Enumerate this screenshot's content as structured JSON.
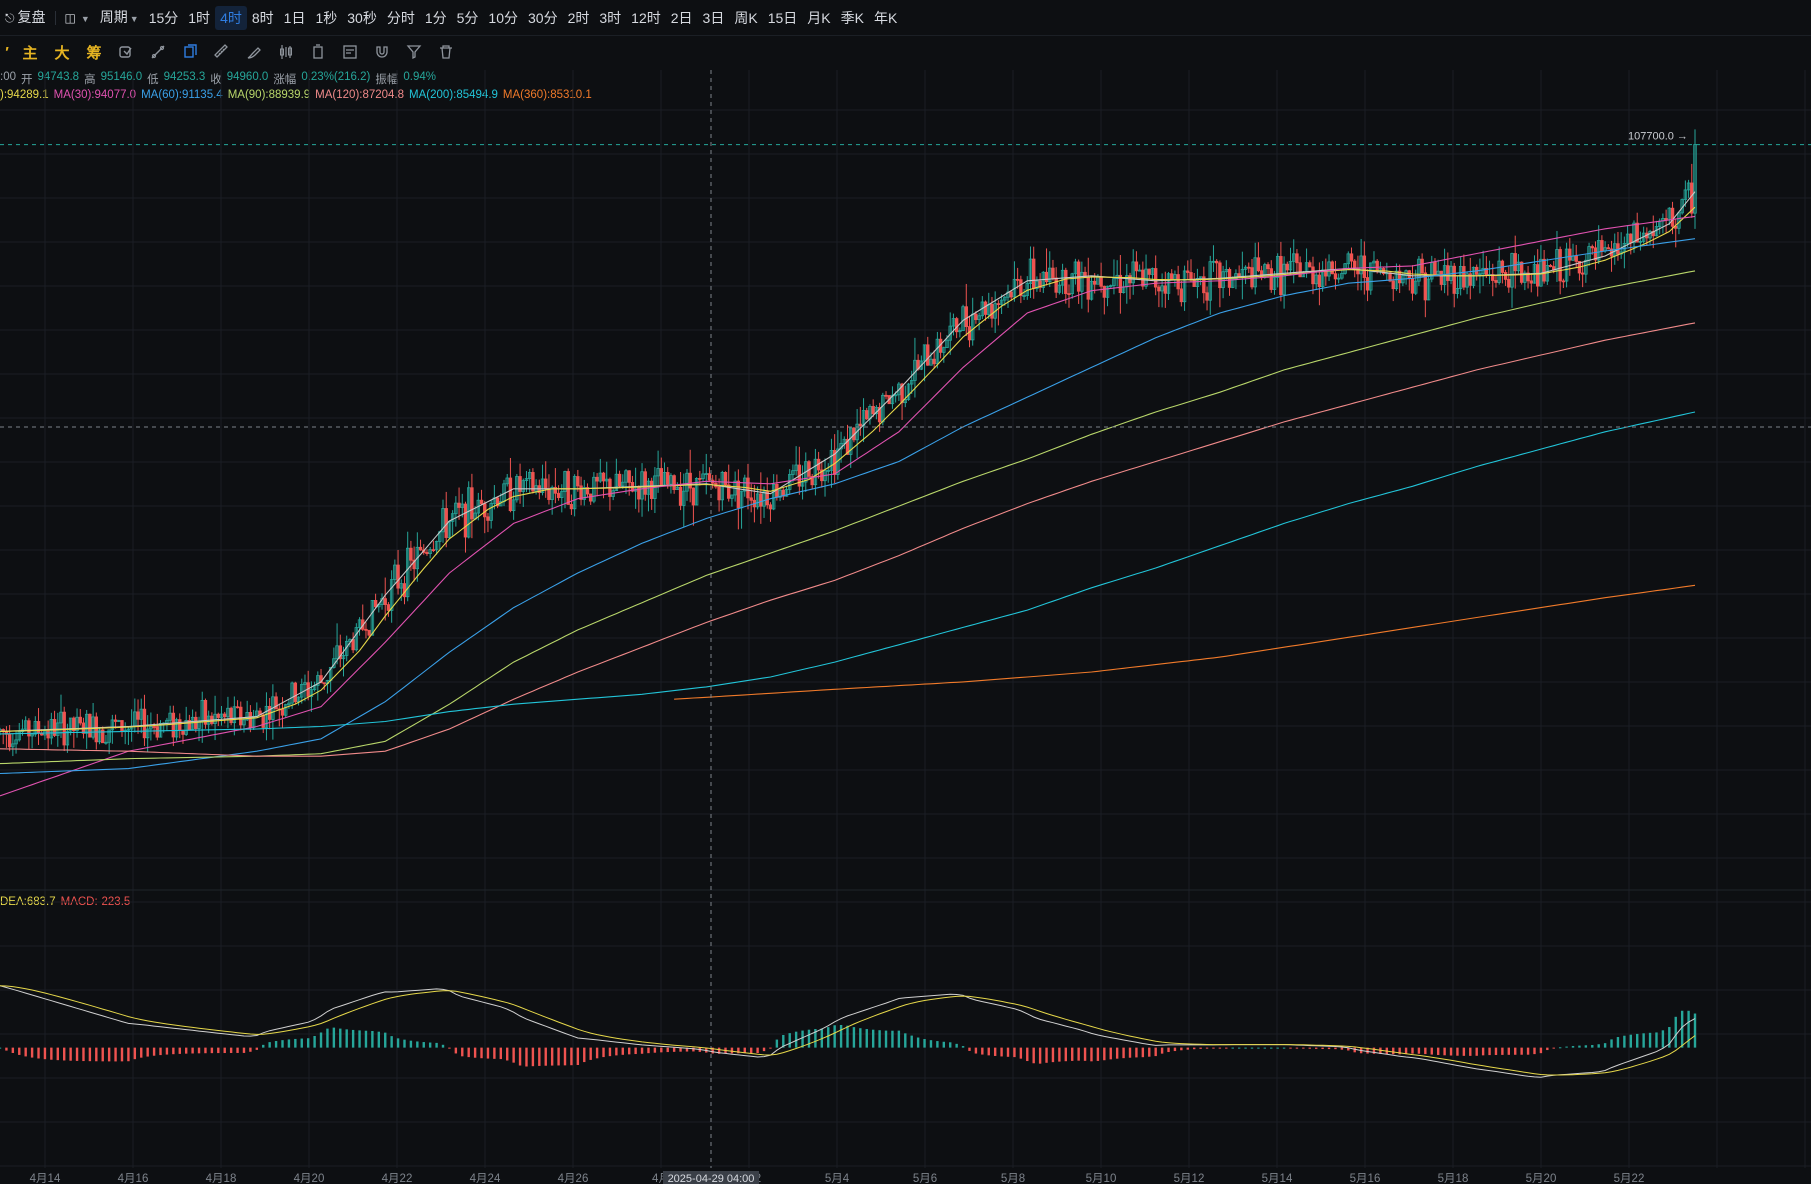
{
  "toolbar": {
    "items": [
      {
        "label": "复盘",
        "name": "replay-button",
        "icon": "replay-icon"
      },
      {
        "label": "",
        "name": "chart-type-button",
        "icon": "candle-type-icon",
        "caret": true
      },
      {
        "label": "周期",
        "name": "period-menu",
        "caret": true
      },
      {
        "label": "15分",
        "name": "period-15m"
      },
      {
        "label": "1时",
        "name": "period-1h"
      },
      {
        "label": "4时",
        "name": "period-4h",
        "active": true
      },
      {
        "label": "8时",
        "name": "period-8h"
      },
      {
        "label": "1日",
        "name": "period-1d"
      },
      {
        "label": "1秒",
        "name": "period-1s"
      },
      {
        "label": "30秒",
        "name": "period-30s"
      },
      {
        "label": "分时",
        "name": "period-timeline"
      },
      {
        "label": "1分",
        "name": "period-1m"
      },
      {
        "label": "5分",
        "name": "period-5m"
      },
      {
        "label": "10分",
        "name": "period-10m"
      },
      {
        "label": "30分",
        "name": "period-30m"
      },
      {
        "label": "2时",
        "name": "period-2h"
      },
      {
        "label": "3时",
        "name": "period-3h"
      },
      {
        "label": "12时",
        "name": "period-12h"
      },
      {
        "label": "2日",
        "name": "period-2d"
      },
      {
        "label": "3日",
        "name": "period-3d"
      },
      {
        "label": "周K",
        "name": "period-week"
      },
      {
        "label": "15日",
        "name": "period-15d"
      },
      {
        "label": "月K",
        "name": "period-month"
      },
      {
        "label": "季K",
        "name": "period-quarter"
      },
      {
        "label": "年K",
        "name": "period-year"
      }
    ]
  },
  "drawbar": {
    "text_tools": [
      {
        "label": "主",
        "name": "main-indicator-button"
      },
      {
        "label": "大",
        "name": "large-order-button"
      },
      {
        "label": "筹",
        "name": "chip-distribution-button"
      }
    ],
    "icon_tools": [
      "replace-icon",
      "line-tool-icon",
      "copy-icon",
      "ruler-icon",
      "brush-icon",
      "candle-icon",
      "delete-icon",
      "note-icon",
      "magnet-icon",
      "filter-icon",
      "trash-icon"
    ]
  },
  "info": {
    "time_suffix": ":00",
    "open_label": "开",
    "open": "94743.8",
    "high_label": "高",
    "high": "95146.0",
    "low_label": "低",
    "low": "94253.3",
    "close_label": "收",
    "close": "94960.0",
    "change_label": "涨幅",
    "change": "0.23%(216.2)",
    "amplitude_label": "振幅",
    "amplitude": "0.94%"
  },
  "ma_legend": [
    {
      "label": "):94289.1",
      "color": "#e6d84a"
    },
    {
      "label": "MA(30):94077.0",
      "color": "#e052b0"
    },
    {
      "label": "MA(60):91135.4",
      "color": "#3aa0e8"
    },
    {
      "label": "MA(90):88939.9",
      "color": "#b8d66a"
    },
    {
      "label": "MA(120):87204.8",
      "color": "#f08a8a"
    },
    {
      "label": "MA(200):85494.9",
      "color": "#22c4d8"
    },
    {
      "label": "MA(360):85310.1",
      "color": "#f07a2a"
    }
  ],
  "macd_legend": [
    {
      "label": "DEA:683.7",
      "color": "#e6d84a"
    },
    {
      "label": "MACD:-223.5",
      "color": "#ef5350"
    }
  ],
  "price_tag": "107700.0",
  "crosshair_time": "2025-04-29 04:00",
  "colors": {
    "up": "#26a69a",
    "down": "#ef5350",
    "bg": "#0d0f12",
    "grid": "#1a1e24",
    "accent": "#2f7de1"
  },
  "chart_data": {
    "type": "candlestick",
    "instrument_interval": "4时",
    "x_ticks": [
      "4月14",
      "4月16",
      "4月18",
      "4月20",
      "4月22",
      "4月24",
      "4月26",
      "4月",
      "5月2",
      "5月4",
      "5月6",
      "5月8",
      "5月10",
      "5月12",
      "5月14",
      "5月16",
      "5月18",
      "5月20",
      "5月22"
    ],
    "price_anchors": {
      "high_marker": 107700.0,
      "last_close": 94960.0
    },
    "ma_path": {
      "ma_fast_path": [
        [
          0,
          84000
        ],
        [
          40,
          84200
        ],
        [
          80,
          84600
        ],
        [
          100,
          86000
        ],
        [
          120,
          89500
        ],
        [
          140,
          92500
        ],
        [
          160,
          93800
        ],
        [
          180,
          93800
        ],
        [
          200,
          93900
        ],
        [
          220,
          94000
        ],
        [
          240,
          93600
        ],
        [
          260,
          95200
        ],
        [
          280,
          97800
        ],
        [
          300,
          100600
        ],
        [
          320,
          102200
        ],
        [
          340,
          102400
        ],
        [
          360,
          102200
        ],
        [
          380,
          102300
        ],
        [
          400,
          102500
        ],
        [
          420,
          102700
        ],
        [
          440,
          102400
        ],
        [
          460,
          102400
        ],
        [
          480,
          102500
        ],
        [
          500,
          103200
        ],
        [
          520,
          104500
        ],
        [
          528,
          105800
        ]
      ],
      "ma30_path": [
        [
          0,
          81400
        ],
        [
          40,
          83200
        ],
        [
          80,
          84200
        ],
        [
          100,
          85000
        ],
        [
          120,
          87600
        ],
        [
          140,
          90400
        ],
        [
          160,
          92400
        ],
        [
          180,
          93400
        ],
        [
          200,
          93800
        ],
        [
          220,
          94100
        ],
        [
          240,
          94000
        ],
        [
          260,
          94400
        ],
        [
          280,
          96100
        ],
        [
          300,
          98700
        ],
        [
          320,
          100900
        ],
        [
          340,
          101800
        ],
        [
          360,
          102100
        ],
        [
          380,
          102200
        ],
        [
          400,
          102400
        ],
        [
          420,
          102700
        ],
        [
          440,
          102800
        ],
        [
          460,
          103300
        ],
        [
          480,
          103800
        ],
        [
          500,
          104300
        ],
        [
          528,
          104800
        ]
      ],
      "ma60_path": [
        [
          0,
          82300
        ],
        [
          40,
          82500
        ],
        [
          80,
          83200
        ],
        [
          100,
          83700
        ],
        [
          120,
          85200
        ],
        [
          140,
          87200
        ],
        [
          160,
          89000
        ],
        [
          180,
          90400
        ],
        [
          200,
          91600
        ],
        [
          220,
          92600
        ],
        [
          240,
          93400
        ],
        [
          260,
          94000
        ],
        [
          280,
          94900
        ],
        [
          300,
          96300
        ],
        [
          320,
          97500
        ],
        [
          340,
          98700
        ],
        [
          360,
          99900
        ],
        [
          380,
          100900
        ],
        [
          400,
          101600
        ],
        [
          420,
          102100
        ],
        [
          440,
          102300
        ],
        [
          460,
          102600
        ],
        [
          480,
          103000
        ],
        [
          500,
          103400
        ],
        [
          528,
          103900
        ]
      ],
      "ma90_path": [
        [
          0,
          82700
        ],
        [
          40,
          82900
        ],
        [
          80,
          83000
        ],
        [
          100,
          83100
        ],
        [
          120,
          83600
        ],
        [
          140,
          85100
        ],
        [
          160,
          86800
        ],
        [
          180,
          88100
        ],
        [
          200,
          89200
        ],
        [
          220,
          90300
        ],
        [
          240,
          91200
        ],
        [
          260,
          92100
        ],
        [
          280,
          93100
        ],
        [
          300,
          94100
        ],
        [
          320,
          95000
        ],
        [
          340,
          96000
        ],
        [
          360,
          96900
        ],
        [
          380,
          97700
        ],
        [
          400,
          98600
        ],
        [
          420,
          99300
        ],
        [
          440,
          100000
        ],
        [
          460,
          100700
        ],
        [
          480,
          101300
        ],
        [
          500,
          101900
        ],
        [
          528,
          102600
        ]
      ],
      "ma120_path": [
        [
          0,
          83300
        ],
        [
          40,
          83200
        ],
        [
          80,
          83000
        ],
        [
          100,
          83000
        ],
        [
          120,
          83200
        ],
        [
          140,
          84100
        ],
        [
          160,
          85300
        ],
        [
          180,
          86400
        ],
        [
          200,
          87400
        ],
        [
          220,
          88400
        ],
        [
          240,
          89300
        ],
        [
          260,
          90100
        ],
        [
          280,
          91100
        ],
        [
          300,
          92200
        ],
        [
          320,
          93200
        ],
        [
          340,
          94100
        ],
        [
          360,
          94900
        ],
        [
          380,
          95700
        ],
        [
          400,
          96500
        ],
        [
          420,
          97200
        ],
        [
          440,
          97900
        ],
        [
          460,
          98600
        ],
        [
          480,
          99200
        ],
        [
          500,
          99800
        ],
        [
          528,
          100500
        ]
      ],
      "ma200_path": [
        [
          0,
          83900
        ],
        [
          40,
          84000
        ],
        [
          80,
          84100
        ],
        [
          100,
          84200
        ],
        [
          120,
          84400
        ],
        [
          140,
          84800
        ],
        [
          160,
          85100
        ],
        [
          180,
          85300
        ],
        [
          200,
          85500
        ],
        [
          220,
          85800
        ],
        [
          240,
          86200
        ],
        [
          260,
          86800
        ],
        [
          280,
          87500
        ],
        [
          300,
          88200
        ],
        [
          320,
          88900
        ],
        [
          340,
          89800
        ],
        [
          360,
          90600
        ],
        [
          380,
          91500
        ],
        [
          400,
          92400
        ],
        [
          420,
          93200
        ],
        [
          440,
          93900
        ],
        [
          460,
          94700
        ],
        [
          480,
          95400
        ],
        [
          500,
          96100
        ],
        [
          528,
          96900
        ]
      ],
      "ma360_path": [
        [
          210,
          85300
        ],
        [
          260,
          85700
        ],
        [
          300,
          86000
        ],
        [
          340,
          86400
        ],
        [
          360,
          86700
        ],
        [
          380,
          87000
        ],
        [
          400,
          87400
        ],
        [
          420,
          87800
        ],
        [
          440,
          88200
        ],
        [
          460,
          88600
        ],
        [
          480,
          89000
        ],
        [
          500,
          89400
        ],
        [
          528,
          89900
        ]
      ]
    },
    "price_scale": {
      "min": 78000,
      "max": 109500
    },
    "macd_scale": {
      "min": -2600,
      "max": 3300
    }
  }
}
